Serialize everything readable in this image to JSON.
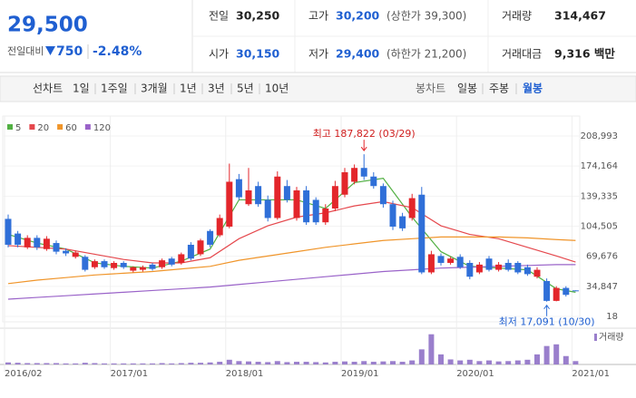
{
  "header": {
    "price": "29,500",
    "change_label": "전일대비",
    "change": "750",
    "change_pct": "-2.48%",
    "items": [
      {
        "label": "전일",
        "value": "30,250"
      },
      {
        "label": "고가",
        "value": "30,200",
        "note": "(상한가 39,300)"
      },
      {
        "label": "거래량",
        "value": "314,467"
      },
      {
        "label": "시가",
        "value": "30,150"
      },
      {
        "label": "저가",
        "value": "29,400",
        "note": "(하한가 21,200)"
      },
      {
        "label": "거래대금",
        "value": "9,316 백만"
      }
    ]
  },
  "tabs": {
    "line_label": "선차트",
    "line": [
      "1일",
      "1주일",
      "3개월",
      "1년",
      "3년",
      "5년",
      "10년"
    ],
    "candle_label": "봉차트",
    "candle": [
      "일봉",
      "주봉",
      "월봉"
    ],
    "selected": "월봉"
  },
  "chart_data": {
    "type": "candlestick",
    "up_color": "#e3262b",
    "down_color": "#2f6fd8",
    "candles": [
      [
        113000,
        118000,
        80000,
        83000
      ],
      [
        96000,
        99000,
        80000,
        83000
      ],
      [
        80000,
        94000,
        78000,
        91000
      ],
      [
        91000,
        94000,
        77000,
        80000
      ],
      [
        78000,
        93000,
        76000,
        90000
      ],
      [
        85000,
        88000,
        72000,
        75000
      ],
      [
        76000,
        79000,
        70000,
        73000
      ],
      [
        69000,
        76000,
        67000,
        74000
      ],
      [
        69000,
        71000,
        52000,
        54000
      ],
      [
        57000,
        66000,
        55000,
        64000
      ],
      [
        64000,
        66000,
        55000,
        57000
      ],
      [
        56000,
        64000,
        54000,
        62000
      ],
      [
        62000,
        64000,
        55000,
        57000
      ],
      [
        53000,
        58000,
        51000,
        57000
      ],
      [
        54000,
        59000,
        52000,
        57000
      ],
      [
        60000,
        62000,
        53000,
        55000
      ],
      [
        57000,
        67000,
        55000,
        65000
      ],
      [
        67000,
        69000,
        58000,
        60000
      ],
      [
        62000,
        74000,
        60000,
        72000
      ],
      [
        83000,
        86000,
        65000,
        67000
      ],
      [
        72000,
        90000,
        70000,
        88000
      ],
      [
        99000,
        101000,
        80000,
        83000
      ],
      [
        94000,
        118000,
        92000,
        114000
      ],
      [
        104000,
        177000,
        102000,
        156000
      ],
      [
        159000,
        165000,
        135000,
        138000
      ],
      [
        130000,
        172000,
        128000,
        146000
      ],
      [
        151000,
        156000,
        127000,
        130000
      ],
      [
        135000,
        140000,
        110000,
        114000
      ],
      [
        114000,
        168000,
        112000,
        162000
      ],
      [
        151000,
        158000,
        132000,
        135000
      ],
      [
        114000,
        150000,
        111000,
        146000
      ],
      [
        146000,
        151000,
        106000,
        109000
      ],
      [
        135000,
        138000,
        106000,
        109000
      ],
      [
        109000,
        130000,
        106000,
        125000
      ],
      [
        125000,
        157000,
        122000,
        151000
      ],
      [
        141000,
        172000,
        138000,
        167000
      ],
      [
        156000,
        176000,
        153000,
        172000
      ],
      [
        172000,
        187822,
        158000,
        162000
      ],
      [
        162000,
        167000,
        148000,
        151000
      ],
      [
        151000,
        154000,
        126000,
        130000
      ],
      [
        130000,
        134000,
        100000,
        104000
      ],
      [
        116000,
        120000,
        99000,
        102000
      ],
      [
        114000,
        142000,
        111000,
        137000
      ],
      [
        141000,
        150000,
        49000,
        51000
      ],
      [
        51000,
        76000,
        49000,
        72000
      ],
      [
        70000,
        73000,
        59000,
        62000
      ],
      [
        62000,
        69000,
        60000,
        67000
      ],
      [
        69000,
        72000,
        55000,
        57000
      ],
      [
        62000,
        65000,
        43000,
        46000
      ],
      [
        51000,
        63000,
        49000,
        60000
      ],
      [
        67000,
        70000,
        52000,
        54000
      ],
      [
        54000,
        63000,
        52000,
        60000
      ],
      [
        62000,
        66000,
        52000,
        54000
      ],
      [
        62000,
        64000,
        49000,
        51000
      ],
      [
        57000,
        60000,
        47000,
        49000
      ],
      [
        46000,
        57000,
        44000,
        54000
      ],
      [
        41000,
        44000,
        17091,
        18000
      ],
      [
        18000,
        35000,
        17500,
        33000
      ],
      [
        33000,
        35000,
        23000,
        25000
      ],
      [
        30150,
        30200,
        29400,
        29500
      ]
    ],
    "ylim": [
      18,
      208993
    ],
    "yticks": [
      {
        "value": 208993,
        "label": "208,993"
      },
      {
        "value": 174164,
        "label": "174,164"
      },
      {
        "value": 139335,
        "label": "139,335"
      },
      {
        "value": 104505,
        "label": "104,505"
      },
      {
        "value": 69676,
        "label": "69,676"
      },
      {
        "value": 34847,
        "label": "34,847"
      },
      18
    ],
    "xticks": [
      {
        "value": 0,
        "label": "2016/02"
      },
      {
        "value": 11,
        "label": "2017/01"
      },
      {
        "value": 23,
        "label": "2018/01"
      },
      {
        "value": 35,
        "label": "2019/01"
      },
      {
        "value": 47,
        "label": "2020/01"
      },
      {
        "value": 59,
        "label": "2021/01"
      }
    ],
    "ma_x": [
      0,
      3,
      6,
      9,
      12,
      15,
      18,
      21,
      24,
      27,
      30,
      33,
      36,
      39,
      42,
      45,
      48,
      51,
      54,
      57,
      59
    ],
    "series": [
      {
        "name": "5",
        "color": "#52b043",
        "values": [
          95000,
          85000,
          78000,
          62000,
          58000,
          56000,
          64000,
          78000,
          135000,
          135000,
          135000,
          125000,
          155000,
          160000,
          115000,
          75000,
          58000,
          56000,
          54000,
          32000,
          28000
        ]
      },
      {
        "name": "20",
        "color": "#e5484d",
        "values": [
          82000,
          80000,
          78000,
          72000,
          66000,
          62000,
          62000,
          68000,
          90000,
          105000,
          115000,
          120000,
          128000,
          133000,
          126000,
          105000,
          95000,
          90000,
          80000,
          70000,
          63000
        ]
      },
      {
        "name": "60",
        "color": "#f0952a",
        "values": [
          38000,
          42000,
          45000,
          48000,
          50000,
          52000,
          55000,
          58000,
          65000,
          70000,
          75000,
          80000,
          84000,
          88000,
          90000,
          92000,
          92000,
          92000,
          91000,
          89000,
          88000
        ]
      },
      {
        "name": "120",
        "color": "#9a63c9",
        "values": [
          20000,
          22000,
          24000,
          26000,
          28000,
          30000,
          32000,
          34000,
          37000,
          40000,
          43000,
          46000,
          49000,
          52000,
          54000,
          56000,
          57000,
          58000,
          59000,
          60000,
          60000
        ]
      }
    ],
    "volume_label": "거래량",
    "volume_color": "#9a7fcc",
    "volume_lim": [
      0,
      100
    ],
    "volume": [
      6,
      5,
      4,
      4,
      4,
      4,
      3,
      3,
      5,
      4,
      3,
      3,
      3,
      3,
      3,
      3,
      4,
      3,
      4,
      5,
      5,
      6,
      8,
      14,
      10,
      9,
      8,
      7,
      10,
      7,
      8,
      8,
      7,
      6,
      8,
      9,
      8,
      10,
      8,
      9,
      10,
      8,
      12,
      45,
      90,
      30,
      15,
      12,
      14,
      10,
      12,
      9,
      10,
      12,
      14,
      30,
      55,
      60,
      25,
      10
    ],
    "annotations": [
      {
        "text": "최고 187,822 (03/29)",
        "index": 37,
        "value": 187822
      },
      {
        "text": "최저 17,091 (10/30)",
        "index": 56,
        "value": 17091
      }
    ]
  }
}
